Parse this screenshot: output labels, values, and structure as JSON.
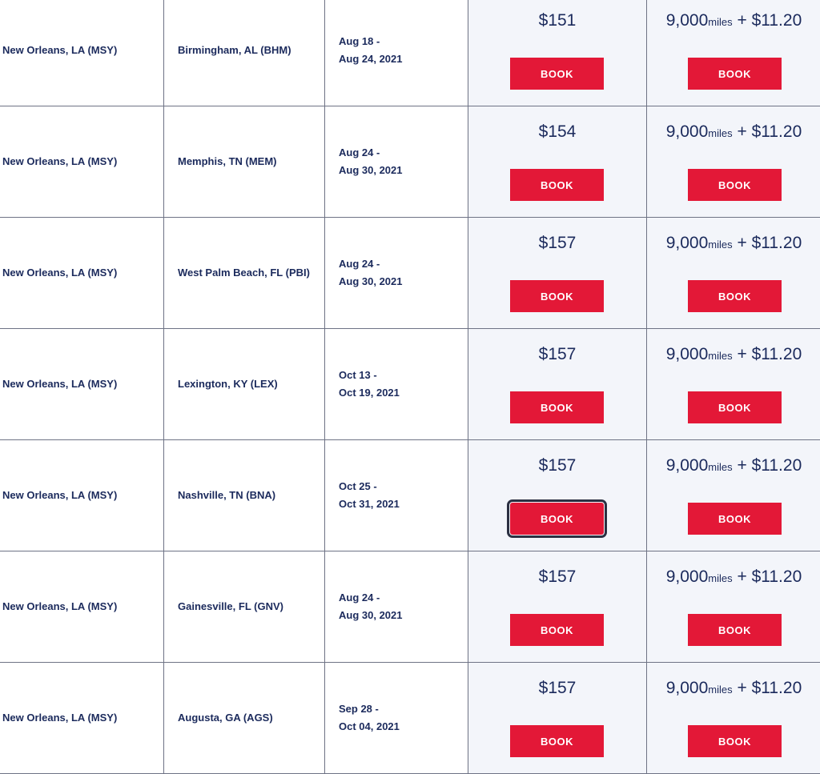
{
  "book_label": "BOOK",
  "miles_unit": "miles",
  "rows": [
    {
      "origin": "New Orleans, LA (MSY)",
      "destination": "Birmingham, AL (BHM)",
      "date_start": "Aug 18 -",
      "date_end": "Aug 24, 2021",
      "price": "$151",
      "miles": "9,000",
      "fee": "+ $11.20"
    },
    {
      "origin": "New Orleans, LA (MSY)",
      "destination": "Memphis, TN (MEM)",
      "date_start": "Aug 24 -",
      "date_end": "Aug 30, 2021",
      "price": "$154",
      "miles": "9,000",
      "fee": "+ $11.20"
    },
    {
      "origin": "New Orleans, LA (MSY)",
      "destination": "West Palm Beach, FL (PBI)",
      "date_start": "Aug 24 -",
      "date_end": "Aug 30, 2021",
      "price": "$157",
      "miles": "9,000",
      "fee": "+ $11.20"
    },
    {
      "origin": "New Orleans, LA (MSY)",
      "destination": "Lexington, KY (LEX)",
      "date_start": "Oct 13 -",
      "date_end": "Oct 19, 2021",
      "price": "$157",
      "miles": "9,000",
      "fee": "+ $11.20"
    },
    {
      "origin": "New Orleans, LA (MSY)",
      "destination": "Nashville, TN (BNA)",
      "date_start": "Oct 25 -",
      "date_end": "Oct 31, 2021",
      "price": "$157",
      "miles": "9,000",
      "fee": "+ $11.20",
      "focused": true
    },
    {
      "origin": "New Orleans, LA (MSY)",
      "destination": "Gainesville, FL (GNV)",
      "date_start": "Aug 24 -",
      "date_end": "Aug 30, 2021",
      "price": "$157",
      "miles": "9,000",
      "fee": "+ $11.20"
    },
    {
      "origin": "New Orleans, LA (MSY)",
      "destination": "Augusta, GA (AGS)",
      "date_start": "Sep 28 -",
      "date_end": "Oct 04, 2021",
      "price": "$157",
      "miles": "9,000",
      "fee": "+ $11.20"
    }
  ]
}
